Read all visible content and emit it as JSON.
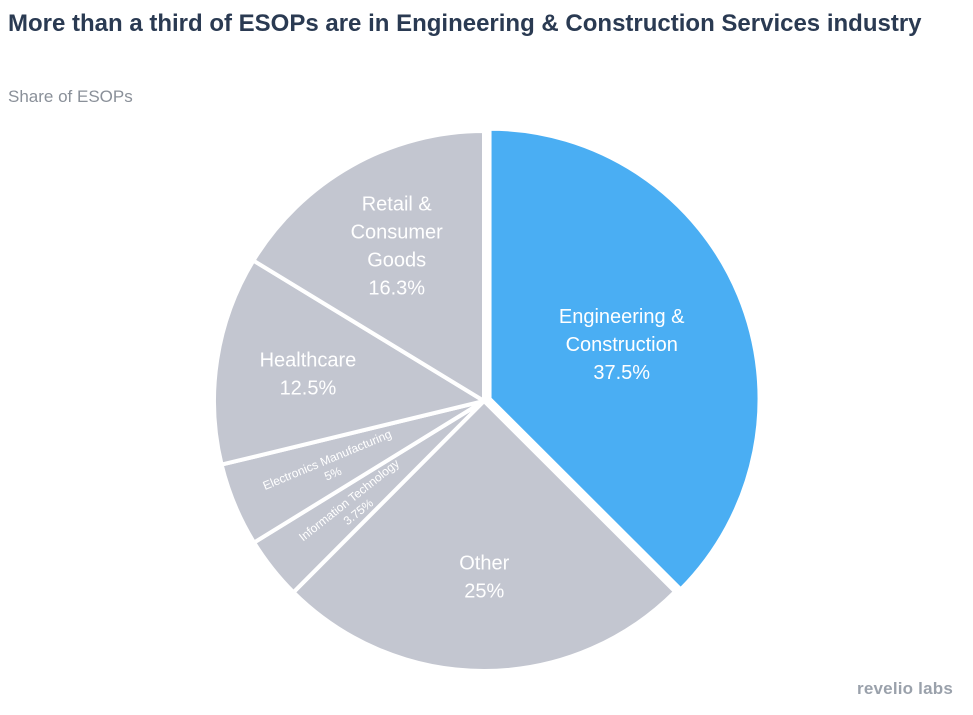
{
  "title": "More than a third of ESOPs are in Engineering & Construction Services industry",
  "subtitle": "Share of ESOPs",
  "brand": "revelio labs",
  "colors": {
    "highlight": "#4aaef3",
    "muted": "#c3c6d0",
    "label": "#ffffff"
  },
  "chart_data": {
    "type": "pie",
    "title": "More than a third of ESOPs are in Engineering & Construction Services industry",
    "subtitle": "Share of ESOPs",
    "unit": "%",
    "slices": [
      {
        "name": "Engineering & Construction",
        "label_lines": [
          "Engineering &",
          "Construction"
        ],
        "value_label": "37.5%",
        "value": 37.5,
        "highlight": true
      },
      {
        "name": "Other",
        "label_lines": [
          "Other"
        ],
        "value_label": "25%",
        "value": 25,
        "highlight": false
      },
      {
        "name": "Information Technology",
        "label_lines": [
          "Information Technology"
        ],
        "value_label": "3.75%",
        "value": 3.75,
        "highlight": false,
        "small": true
      },
      {
        "name": "Electronics Manufacturing",
        "label_lines": [
          "Electronics Manufacturing"
        ],
        "value_label": "5%",
        "value": 5,
        "highlight": false,
        "small": true
      },
      {
        "name": "Healthcare",
        "label_lines": [
          "Healthcare"
        ],
        "value_label": "12.5%",
        "value": 12.5,
        "highlight": false
      },
      {
        "name": "Retail & Consumer Goods",
        "label_lines": [
          "Retail &",
          "Consumer",
          "Goods"
        ],
        "value_label": "16.3%",
        "value": 16.3,
        "highlight": false
      }
    ]
  }
}
